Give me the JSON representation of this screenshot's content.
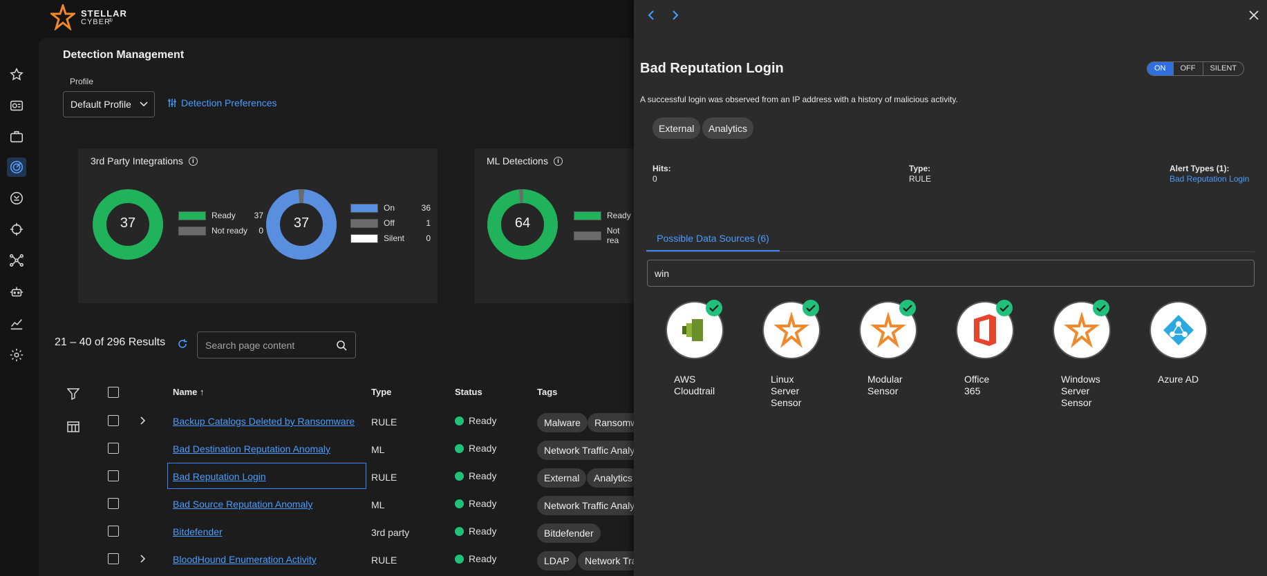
{
  "brand": {
    "line1": "STELLAR",
    "line2": "CYBER",
    "reg": "®"
  },
  "page": {
    "title": "Detection Management",
    "profile_label": "Profile",
    "profile_value": "Default Profile",
    "preferences_link": "Detection Preferences"
  },
  "panels": {
    "third_party": {
      "title": "3rd Party Integrations",
      "readiness_total": "37",
      "readiness_legend": [
        {
          "label": "Ready",
          "value": "37",
          "color": "#21b35b"
        },
        {
          "label": "Not ready",
          "value": "0",
          "color": "#6b6b6b"
        }
      ],
      "state_total": "37",
      "state_legend": [
        {
          "label": "On",
          "value": "36",
          "color": "#5a8fe0"
        },
        {
          "label": "Off",
          "value": "1",
          "color": "#6b6b6b"
        },
        {
          "label": "Silent",
          "value": "0",
          "color": "#ffffff"
        }
      ]
    },
    "ml": {
      "title": "ML Detections",
      "readiness_total": "64",
      "readiness_legend": [
        {
          "label": "Ready",
          "color": "#21b35b"
        },
        {
          "label": "Not rea",
          "color": "#6b6b6b"
        }
      ]
    }
  },
  "results": {
    "summary": "21 – 40 of 296 Results",
    "search_placeholder": "Search page content"
  },
  "table": {
    "columns": {
      "name": "Name",
      "sort_arrow": "↑",
      "type": "Type",
      "status": "Status",
      "tags": "Tags"
    },
    "rows": [
      {
        "name": "Backup Catalogs Deleted by Ransomware",
        "type": "RULE",
        "status": "Ready",
        "tags": [
          "Malware",
          "Ransomw"
        ]
      },
      {
        "name": "Bad Destination Reputation Anomaly",
        "type": "ML",
        "status": "Ready",
        "tags": [
          "Network Traffic Analy"
        ]
      },
      {
        "name": "Bad Reputation Login",
        "type": "RULE",
        "status": "Ready",
        "tags": [
          "External",
          "Analytics"
        ]
      },
      {
        "name": "Bad Source Reputation Anomaly",
        "type": "ML",
        "status": "Ready",
        "tags": [
          "Network Traffic Analy"
        ]
      },
      {
        "name": "Bitdefender",
        "type": "3rd party",
        "status": "Ready",
        "tags": [
          "Bitdefender"
        ]
      },
      {
        "name": "BloodHound Enumeration Activity",
        "type": "RULE",
        "status": "Ready",
        "tags": [
          "LDAP",
          "Network Tra"
        ]
      }
    ]
  },
  "drawer": {
    "title": "Bad Reputation Login",
    "toggle": {
      "on": "ON",
      "off": "OFF",
      "silent": "SILENT",
      "selected": "ON"
    },
    "description": "A successful login was observed from an IP address with a history of malicious activity.",
    "tags": [
      "External",
      "Analytics"
    ],
    "hits_label": "Hits:",
    "hits_value": "0",
    "type_label": "Type:",
    "type_value": "RULE",
    "alert_types_label": "Alert Types (1):",
    "alert_types_value": "Bad Reputation Login",
    "tab_label": "Possible Data Sources (6)",
    "filter_value": "win",
    "data_sources": [
      {
        "label": [
          "AWS",
          "Cloudtrail"
        ],
        "icon": "aws-cloudtrail-icon",
        "checked": true
      },
      {
        "label": [
          "Linux",
          "Server",
          "Sensor"
        ],
        "icon": "stellar-cyber-icon",
        "checked": true
      },
      {
        "label": [
          "Modular",
          "Sensor"
        ],
        "icon": "stellar-cyber-icon",
        "checked": true
      },
      {
        "label": [
          "Office",
          "365"
        ],
        "icon": "office-365-icon",
        "checked": true
      },
      {
        "label": [
          "Windows",
          "Server",
          "Sensor"
        ],
        "icon": "stellar-cyber-icon",
        "checked": true
      },
      {
        "label": [
          "Azure AD"
        ],
        "icon": "azure-ad-icon",
        "checked": false
      }
    ]
  }
}
